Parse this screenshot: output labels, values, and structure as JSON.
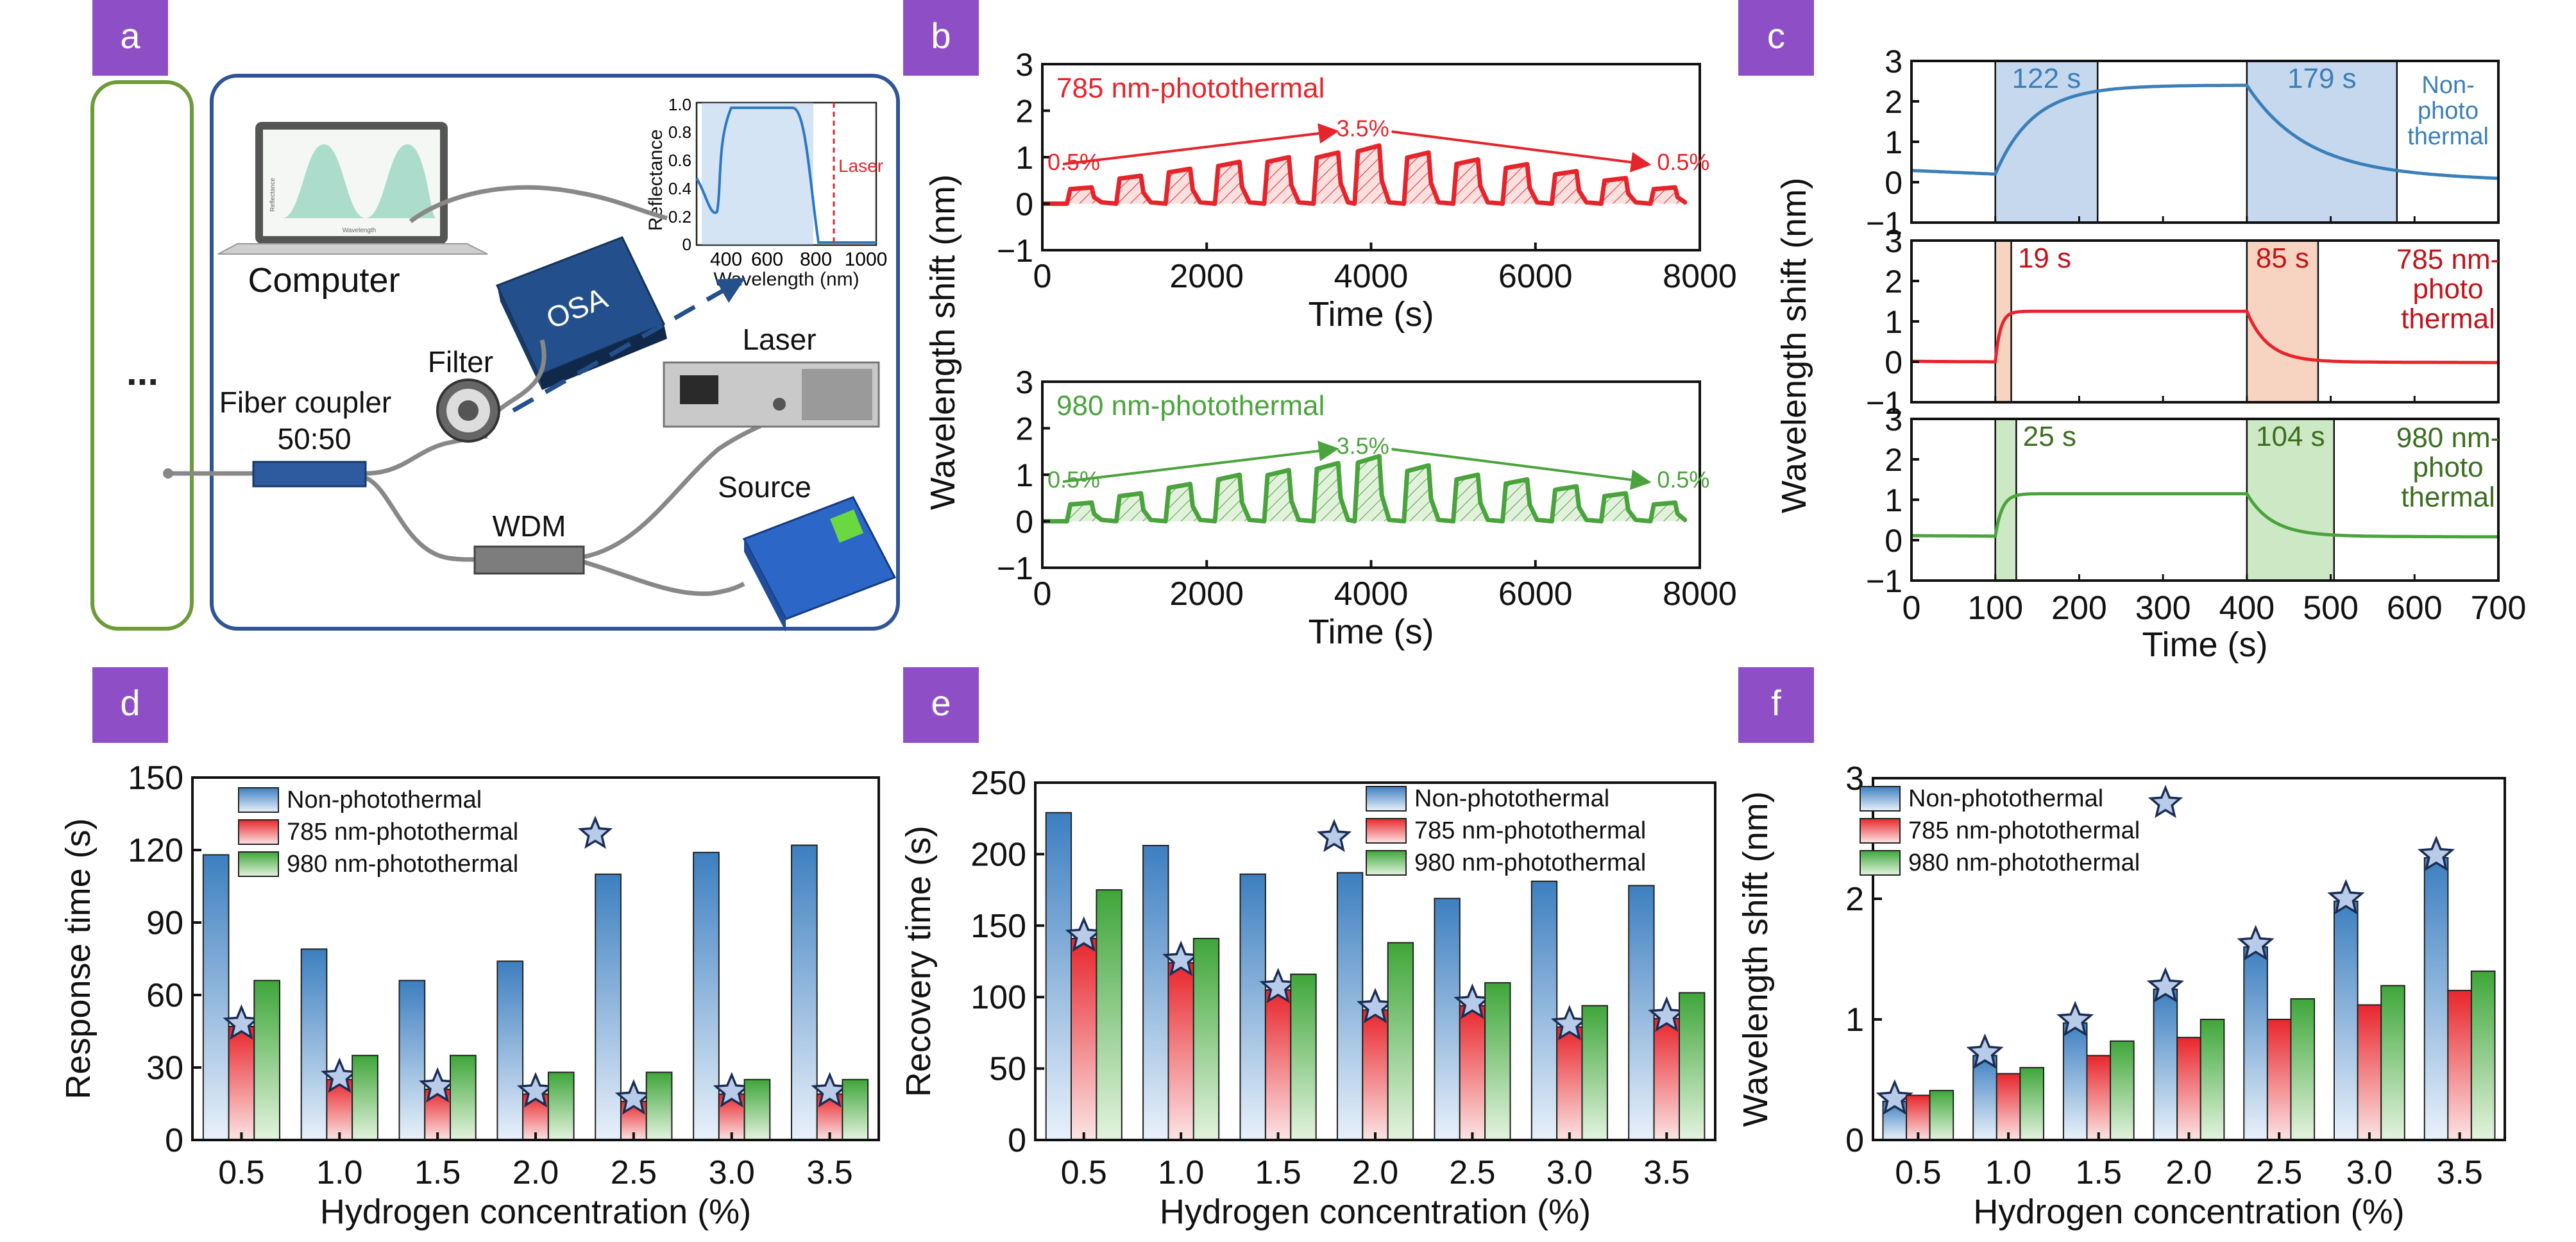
{
  "panel_labels": {
    "a": "a",
    "b": "b",
    "c": "c",
    "d": "d",
    "e": "e",
    "f": "f"
  },
  "colors": {
    "label_bg": "#8e4fc6",
    "blue": "#3b7fb8",
    "blue_light": "#c6d8ee",
    "red": "#e6242b",
    "red_light": "#f6c8c8",
    "green": "#4aa33c",
    "green_light": "#cde8c4",
    "orange_light": "#f7d4c2",
    "dark_red": "#c0141a",
    "dark_green": "#3c6e20",
    "schematic_frame": "#2f5597",
    "left_frame": "#6d9b3a"
  },
  "schematic": {
    "ellipsis": "...",
    "computer": "Computer",
    "osa": "OSA",
    "filter": "Filter",
    "fiber_coupler": "Fiber coupler",
    "ratio": "50:50",
    "laser": "Laser",
    "source": "Source",
    "wdm": "WDM",
    "screen_ylabel": "Reflectance",
    "screen_xlabel": "Wavelength",
    "inset": {
      "ylabel": "Reflectance",
      "xlabel": "Wavelength (nm)",
      "laser_label": "Laser",
      "xticks": [
        "400",
        "600",
        "800",
        "1000"
      ],
      "yticks": [
        "0",
        "0.2",
        "0.4",
        "0.6",
        "0.8",
        "1.0"
      ]
    }
  },
  "chart_data": [
    {
      "id": "b",
      "type": "line",
      "ylabel": "Wavelength shift (nm)",
      "subplots": [
        {
          "title": "785 nm-photothermal",
          "xlabel": "Time (s)",
          "xlim": [
            0,
            8000
          ],
          "ylim": [
            -1,
            3
          ],
          "xticks": [
            "0",
            "2000",
            "4000",
            "6000",
            "8000"
          ],
          "yticks": [
            "−1",
            "0",
            "1",
            "2",
            "3"
          ],
          "annotations": [
            "0.5%",
            "3.5%",
            "0.5%"
          ],
          "series": [
            {
              "color": "red",
              "pulse_starts": [
                300,
                900,
                1500,
                2100,
                2700,
                3300,
                3800,
                4400,
                5000,
                5600,
                6200,
                6800,
                7400
              ],
              "pulse_levels": [
                0.35,
                0.6,
                0.75,
                0.9,
                1.0,
                1.1,
                1.25,
                1.1,
                0.95,
                0.85,
                0.7,
                0.55,
                0.35
              ]
            }
          ]
        },
        {
          "title": "980 nm-photothermal",
          "xlabel": "Time (s)",
          "xlim": [
            0,
            8000
          ],
          "ylim": [
            -1,
            3
          ],
          "xticks": [
            "0",
            "2000",
            "4000",
            "6000",
            "8000"
          ],
          "yticks": [
            "−1",
            "0",
            "1",
            "2",
            "3"
          ],
          "annotations": [
            "0.5%",
            "3.5%",
            "0.5%"
          ],
          "series": [
            {
              "color": "green",
              "pulse_starts": [
                300,
                900,
                1500,
                2100,
                2700,
                3300,
                3800,
                4400,
                5000,
                5600,
                6200,
                6800,
                7400
              ],
              "pulse_levels": [
                0.4,
                0.6,
                0.8,
                1.0,
                1.1,
                1.25,
                1.4,
                1.2,
                1.0,
                0.9,
                0.75,
                0.6,
                0.4
              ]
            }
          ]
        }
      ]
    },
    {
      "id": "c",
      "type": "line",
      "ylabel": "Wavelength shift (nm)",
      "xlabel": "Time (s)",
      "xlim": [
        0,
        700
      ],
      "xticks": [
        "0",
        "100",
        "200",
        "300",
        "400",
        "500",
        "600",
        "700"
      ],
      "subplots": [
        {
          "ylim": [
            -1,
            3
          ],
          "yticks": [
            "−1",
            "0",
            "1",
            "2",
            "3"
          ],
          "label": "Non-\nphoto\nthermal",
          "color": "blue",
          "rise": [
            100,
            222
          ],
          "fall": [
            400,
            579
          ],
          "rise_text": "122 s",
          "fall_text": "179 s",
          "base": 0.2,
          "top": 2.4,
          "rise_tau": 45,
          "fall_tau": 70,
          "drift": 0.0015
        },
        {
          "ylim": [
            -1,
            3
          ],
          "yticks": [
            "−1",
            "0",
            "1",
            "2",
            "3"
          ],
          "label": "785 nm-\nphoto\nthermal",
          "color": "red",
          "rise": [
            100,
            119
          ],
          "fall": [
            400,
            485
          ],
          "rise_text": "19 s",
          "fall_text": "85 s",
          "base": 0.0,
          "top": 1.25,
          "rise_tau": 6,
          "fall_tau": 25,
          "drift": 0.0002
        },
        {
          "ylim": [
            -1,
            3
          ],
          "yticks": [
            "−1",
            "0",
            "1",
            "2",
            "3"
          ],
          "label": "980 nm-\nphoto\nthermal",
          "color": "green",
          "rise": [
            100,
            125
          ],
          "fall": [
            400,
            504
          ],
          "rise_text": "25 s",
          "fall_text": "104 s",
          "base": 0.1,
          "top": 1.15,
          "rise_tau": 8,
          "fall_tau": 30,
          "drift": 0.0002
        }
      ]
    },
    {
      "id": "d",
      "type": "bar",
      "xlabel": "Hydrogen concentration (%)",
      "ylabel": "Response time (s)",
      "ylim": [
        0,
        150
      ],
      "yticks": [
        "0",
        "30",
        "60",
        "90",
        "120",
        "150"
      ],
      "categories": [
        "0.5",
        "1.0",
        "1.5",
        "2.0",
        "2.5",
        "3.0",
        "3.5"
      ],
      "series": [
        {
          "name": "Non-photothermal",
          "color": "blue",
          "values": [
            118,
            79,
            66,
            74,
            110,
            119,
            122
          ]
        },
        {
          "name": "785 nm-photothermal",
          "color": "red",
          "values": [
            47,
            25,
            21,
            19,
            16,
            19,
            19
          ]
        },
        {
          "name": "980 nm-photothermal",
          "color": "green",
          "values": [
            66,
            35,
            35,
            28,
            28,
            25,
            25
          ]
        }
      ],
      "star_series": 1
    },
    {
      "id": "e",
      "type": "bar",
      "xlabel": "Hydrogen concentration (%)",
      "ylabel": "Recovery time (s)",
      "ylim": [
        0,
        250
      ],
      "yticks": [
        "0",
        "50",
        "100",
        "150",
        "200",
        "250"
      ],
      "categories": [
        "0.5",
        "1.0",
        "1.5",
        "2.0",
        "2.5",
        "3.0",
        "3.5"
      ],
      "series": [
        {
          "name": "Non-photothermal",
          "color": "blue",
          "values": [
            229,
            206,
            186,
            187,
            169,
            181,
            178
          ]
        },
        {
          "name": "785 nm-photothermal",
          "color": "red",
          "values": [
            141,
            124,
            105,
            91,
            94,
            79,
            85
          ]
        },
        {
          "name": "980 nm-photothermal",
          "color": "green",
          "values": [
            175,
            141,
            116,
            138,
            110,
            94,
            103
          ]
        }
      ],
      "star_series": 1
    },
    {
      "id": "f",
      "type": "bar",
      "xlabel": "Hydrogen concentration (%)",
      "ylabel": "Wavelength shift (nm)",
      "ylim": [
        0,
        3
      ],
      "yticks": [
        "0",
        "1",
        "2",
        "3"
      ],
      "categories": [
        "0.5",
        "1.0",
        "1.5",
        "2.0",
        "2.5",
        "3.0",
        "3.5"
      ],
      "series": [
        {
          "name": "Non-photothermal",
          "color": "blue",
          "values": [
            0.32,
            0.7,
            0.97,
            1.25,
            1.6,
            1.98,
            2.34
          ]
        },
        {
          "name": "785 nm-photothermal",
          "color": "red",
          "values": [
            0.37,
            0.55,
            0.7,
            0.85,
            1.0,
            1.12,
            1.24
          ]
        },
        {
          "name": "980 nm-photothermal",
          "color": "green",
          "values": [
            0.41,
            0.6,
            0.82,
            1.0,
            1.17,
            1.28,
            1.4
          ]
        }
      ],
      "star_series": 0
    }
  ]
}
